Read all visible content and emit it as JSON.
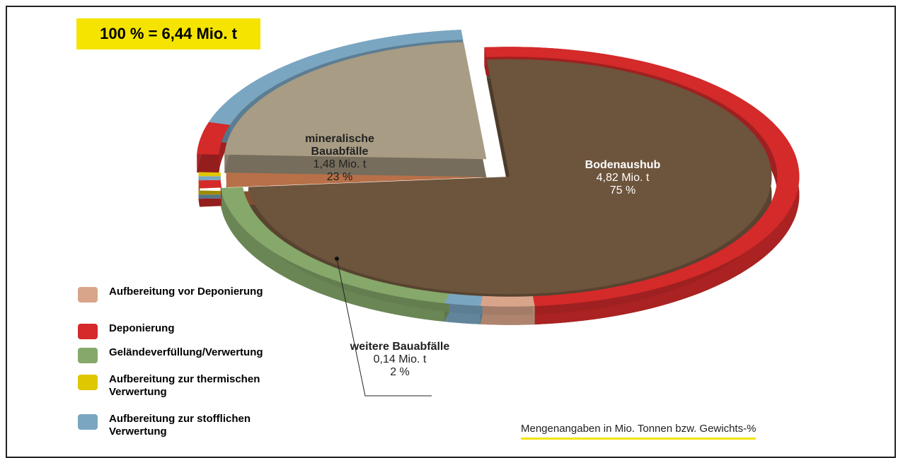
{
  "chart_data": {
    "type": "pie",
    "title": "100 % = 6,44 Mio. t",
    "note": "Mengenangaben in Mio. Tonnen bzw. Gewichts-%",
    "categories": [
      "Bodenaushub",
      "weitere Bauabfälle",
      "mineralische Bauabfälle"
    ],
    "values": [
      75,
      2,
      23
    ],
    "value_labels": [
      "75 %",
      "2 %",
      "23 %"
    ],
    "amount_labels": [
      "4,82 Mio. t",
      "0,14 Mio. t",
      "1,48 Mio. t"
    ],
    "colors": [
      "#6d543c",
      "#b87048",
      "#a89c84"
    ],
    "series": [
      {
        "name": "Aufbereitung vor Deponierung",
        "color": "#d9a58a",
        "values": [
          3,
          0,
          0
        ]
      },
      {
        "name": "Deponierung",
        "color": "#d42a2a",
        "values": [
          50,
          1,
          4
        ]
      },
      {
        "name": "Geländeverfüllung/Verwertung",
        "color": "#86a86a",
        "values": [
          20,
          0,
          0
        ]
      },
      {
        "name": "Aufbereitung zur thermischen Verwertung",
        "color": "#e0c800",
        "values": [
          0,
          0.5,
          0
        ]
      },
      {
        "name": "Aufbereitung zur stofflichen Verwertung",
        "color": "#7aa6c2",
        "values": [
          2,
          0.5,
          19
        ]
      }
    ]
  }
}
